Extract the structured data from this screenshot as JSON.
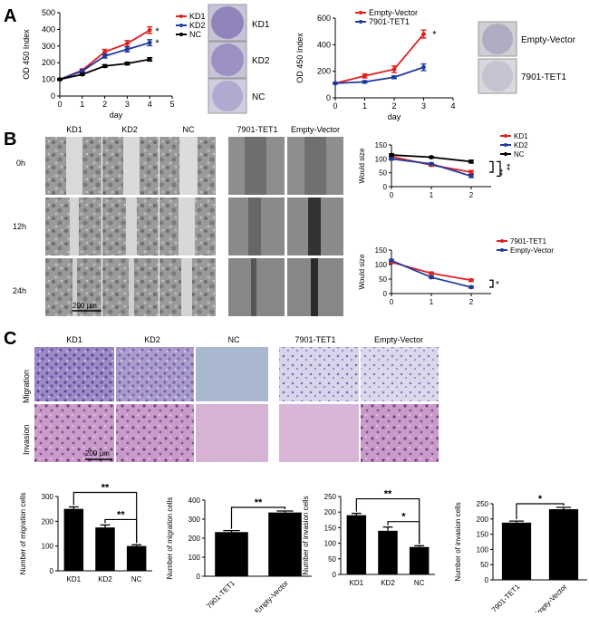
{
  "figure": {
    "panels": {
      "a": "A",
      "b": "B",
      "c": "C"
    },
    "colors": {
      "red": "#e02020",
      "blue": "#1f3a9e",
      "black": "#000000"
    },
    "a": {
      "plate_labels_left": [
        "KD1",
        "KD2",
        "NC"
      ],
      "plate_labels_right": [
        "Empty-Vector",
        "7901-TET1"
      ]
    },
    "b": {
      "col_headers_left": [
        "KD1",
        "KD2",
        "NC"
      ],
      "col_headers_right": [
        "7901-TET1",
        "Empty-Vector"
      ],
      "row_labels": [
        "0h",
        "12h",
        "24h"
      ],
      "scale_bar": "200 μm"
    },
    "c": {
      "col_headers_left": [
        "KD1",
        "KD2",
        "NC"
      ],
      "col_headers_right": [
        "7901-TET1",
        "Empty-Vector"
      ],
      "row_labels": [
        "Migration",
        "Invasion"
      ],
      "scale_bar": "200 μm"
    }
  },
  "chart_data": [
    {
      "id": "a-left",
      "type": "line",
      "title": "",
      "xlabel": "day",
      "ylabel": "OD 450 Index",
      "xlim": [
        0,
        5
      ],
      "ylim": [
        0,
        500
      ],
      "xticks": [
        0,
        1,
        2,
        3,
        4,
        5
      ],
      "yticks": [
        0,
        100,
        200,
        300,
        400,
        500
      ],
      "x": [
        0,
        1,
        2,
        3,
        4
      ],
      "series": [
        {
          "name": "KD1",
          "color": "#e02020",
          "values": [
            100,
            155,
            265,
            315,
            395
          ],
          "err": [
            5,
            8,
            15,
            18,
            20
          ]
        },
        {
          "name": "KD2",
          "color": "#1f3a9e",
          "values": [
            100,
            150,
            240,
            280,
            320
          ],
          "err": [
            5,
            8,
            12,
            15,
            18
          ]
        },
        {
          "name": "NC",
          "color": "#000000",
          "values": [
            100,
            130,
            180,
            195,
            220
          ],
          "err": [
            5,
            6,
            8,
            8,
            10
          ]
        }
      ],
      "annotations": [
        {
          "text": "*",
          "x": 4.25,
          "y": 390
        },
        {
          "text": "*",
          "x": 4.25,
          "y": 320
        }
      ],
      "legend": "top-right"
    },
    {
      "id": "a-right",
      "type": "line",
      "title": "",
      "xlabel": "day",
      "ylabel": "OD 450 Index",
      "xlim": [
        0,
        4
      ],
      "ylim": [
        0,
        600
      ],
      "xticks": [
        0,
        1,
        2,
        3,
        4
      ],
      "yticks": [
        0,
        200,
        400,
        600
      ],
      "x": [
        0,
        1,
        2,
        3
      ],
      "series": [
        {
          "name": "Empty-Vector",
          "color": "#e02020",
          "values": [
            110,
            165,
            215,
            480
          ],
          "err": [
            5,
            15,
            25,
            30
          ]
        },
        {
          "name": "7901-TET1",
          "color": "#1f3a9e",
          "values": [
            110,
            120,
            155,
            230
          ],
          "err": [
            5,
            8,
            10,
            25
          ]
        }
      ],
      "annotations": [
        {
          "text": "*",
          "x": 3.3,
          "y": 480
        }
      ],
      "legend": "top-left"
    },
    {
      "id": "b-top",
      "type": "line",
      "title": "",
      "xlabel": "",
      "ylabel": "Would size",
      "xlim": [
        0,
        2.5
      ],
      "ylim": [
        0,
        150
      ],
      "xticks": [
        0,
        1,
        2
      ],
      "yticks": [
        0,
        50,
        100,
        150
      ],
      "x": [
        0,
        1,
        2
      ],
      "series": [
        {
          "name": "KD1",
          "color": "#e02020",
          "values": [
            108,
            78,
            52
          ],
          "err": [
            4,
            4,
            6
          ]
        },
        {
          "name": "KD2",
          "color": "#1f3a9e",
          "values": [
            100,
            82,
            38
          ],
          "err": [
            4,
            3,
            5
          ]
        },
        {
          "name": "NC",
          "color": "#000000",
          "values": [
            114,
            106,
            90
          ],
          "err": [
            4,
            3,
            5
          ]
        }
      ],
      "annotations": [
        {
          "text": "**"
        },
        {
          "text": "**"
        }
      ],
      "legend": "top-right"
    },
    {
      "id": "b-bottom",
      "type": "line",
      "title": "",
      "xlabel": "",
      "ylabel": "Would size",
      "xlim": [
        0,
        2.5
      ],
      "ylim": [
        0,
        150
      ],
      "xticks": [
        0,
        1,
        2
      ],
      "yticks": [
        0,
        50,
        100,
        150
      ],
      "x": [
        0,
        1,
        2
      ],
      "series": [
        {
          "name": "7901-TET1",
          "color": "#e02020",
          "values": [
            108,
            70,
            46
          ],
          "err": [
            4,
            4,
            4
          ]
        },
        {
          "name": "Empty-Vector",
          "color": "#1f3a9e",
          "values": [
            114,
            56,
            22
          ],
          "err": [
            4,
            4,
            3
          ]
        }
      ],
      "annotations": [
        {
          "text": "*"
        }
      ],
      "legend": "top-right"
    },
    {
      "id": "c-1",
      "type": "bar",
      "title": "",
      "xlabel": "",
      "ylabel": "Number of migration cells",
      "ylim": [
        0,
        300
      ],
      "yticks": [
        0,
        100,
        200,
        300
      ],
      "categories": [
        "KD1",
        "KD2",
        "NC"
      ],
      "values": [
        250,
        175,
        100
      ],
      "err": [
        8,
        10,
        5
      ],
      "annotations": [
        {
          "text": "**",
          "from": 0,
          "to": 2
        },
        {
          "text": "**",
          "from": 1,
          "to": 2
        }
      ]
    },
    {
      "id": "c-2",
      "type": "bar",
      "title": "",
      "xlabel": "",
      "ylabel": "Number of migration cells",
      "ylim": [
        0,
        400
      ],
      "yticks": [
        0,
        100,
        200,
        300,
        400
      ],
      "categories": [
        "7901-TET1",
        "Empty-Vector"
      ],
      "values": [
        232,
        335
      ],
      "err": [
        8,
        8
      ],
      "annotations": [
        {
          "text": "**",
          "from": 0,
          "to": 1
        }
      ]
    },
    {
      "id": "c-3",
      "type": "bar",
      "title": "",
      "xlabel": "",
      "ylabel": "Number of invasion cells",
      "ylim": [
        0,
        250
      ],
      "yticks": [
        0,
        50,
        100,
        150,
        200,
        250
      ],
      "categories": [
        "KD1",
        "KD2",
        "NC"
      ],
      "values": [
        190,
        140,
        88
      ],
      "err": [
        6,
        12,
        4
      ],
      "annotations": [
        {
          "text": "**",
          "from": 0,
          "to": 2
        },
        {
          "text": "*",
          "from": 1,
          "to": 2
        }
      ]
    },
    {
      "id": "c-4",
      "type": "bar",
      "title": "",
      "xlabel": "",
      "ylabel": "Number of invasion cells",
      "ylim": [
        0,
        250
      ],
      "yticks": [
        0,
        50,
        100,
        150,
        200,
        250
      ],
      "categories": [
        "7901-TET1",
        "Empty-Vector"
      ],
      "values": [
        188,
        232
      ],
      "err": [
        5,
        6
      ],
      "annotations": [
        {
          "text": "*",
          "from": 0,
          "to": 1
        }
      ]
    }
  ]
}
